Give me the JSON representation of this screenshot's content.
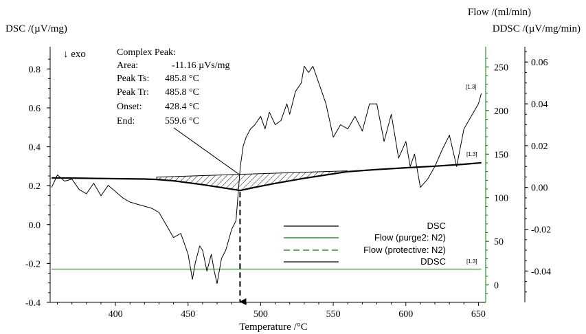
{
  "chart_data": {
    "type": "line",
    "labels": {
      "dsc_axis": "DSC /(µV/mg)",
      "flow_axis": "Flow /(ml/min)",
      "ddsc_axis": "DDSC /(µV/mg/min)",
      "x_axis": "Temperature /°C",
      "exo": "↓ exo"
    },
    "axes": {
      "x": {
        "range": [
          355,
          655
        ],
        "ticks": [
          "400",
          "450",
          "500",
          "550",
          "600",
          "650"
        ]
      },
      "dsc": {
        "range": [
          -0.4,
          0.9
        ],
        "ticks": [
          "-0.4",
          "-0.2",
          "0.0",
          "0.2",
          "0.4",
          "0.6",
          "0.8"
        ]
      },
      "flow": {
        "range": [
          -20,
          270
        ],
        "ticks": [
          "0",
          "50",
          "100",
          "150",
          "200",
          "250"
        ]
      },
      "ddsc": {
        "range": [
          -0.055,
          0.066
        ],
        "ticks": [
          "-0.04",
          "-0.02",
          "0.00",
          "0.02",
          "0.04",
          "0.06"
        ]
      }
    },
    "annotation": {
      "title": "Complex Peak:",
      "rows": [
        {
          "label": "Area:",
          "value": "-11.16 µVs/mg"
        },
        {
          "label": "Peak Ts:",
          "value": "485.8 °C"
        },
        {
          "label": "Peak Tr:",
          "value": "485.8 °C"
        },
        {
          "label": "Onset:",
          "value": "428.4 °C"
        },
        {
          "label": "End:",
          "value": "559.6 °C"
        }
      ],
      "peak_temperature": 485.8,
      "onset": 428.4,
      "end": 559.6
    },
    "segment_marker": "[1.3]",
    "colors": {
      "dsc": "#000000",
      "flow": "#008000",
      "ddsc": "#000000",
      "hatch": "#000000"
    },
    "series": [
      {
        "name": "DSC",
        "axis": "dsc",
        "x": [
          356,
          380,
          400,
          420,
          428.4,
          440,
          460,
          475,
          485.8,
          495,
          510,
          530,
          559.6,
          580,
          600,
          620,
          640,
          652
        ],
        "y": [
          0.24,
          0.238,
          0.236,
          0.234,
          0.232,
          0.225,
          0.205,
          0.188,
          0.175,
          0.19,
          0.212,
          0.238,
          0.272,
          0.283,
          0.292,
          0.3,
          0.31,
          0.318
        ]
      },
      {
        "name": "Flow (purge2: N2)",
        "axis": "flow",
        "x": [
          356,
          652
        ],
        "y": [
          18,
          18
        ]
      },
      {
        "name": "Flow (protective: N2)",
        "axis": "flow",
        "x": [],
        "y": []
      },
      {
        "name": "DDSC",
        "axis": "ddsc",
        "x": [
          356,
          360,
          365,
          370,
          375,
          380,
          385,
          390,
          395,
          400,
          405,
          410,
          415,
          420,
          425,
          430,
          435,
          440,
          445,
          450,
          453,
          455,
          458,
          460,
          463,
          466,
          468,
          470,
          473,
          476,
          480,
          483,
          486,
          488,
          490,
          493,
          496,
          500,
          503,
          506,
          510,
          514,
          518,
          520,
          524,
          528,
          530,
          533,
          536,
          540,
          545,
          550,
          555,
          560,
          565,
          570,
          575,
          580,
          585,
          590,
          595,
          600,
          603,
          606,
          610,
          615,
          620,
          625,
          630,
          635,
          640,
          645,
          650,
          652
        ],
        "y": [
          0.0,
          0.006,
          0.003,
          0.004,
          -0.001,
          -0.003,
          0.002,
          -0.004,
          0.001,
          -0.002,
          -0.005,
          -0.007,
          -0.008,
          -0.009,
          -0.01,
          -0.012,
          -0.018,
          -0.024,
          -0.022,
          -0.032,
          -0.044,
          -0.036,
          -0.028,
          -0.03,
          -0.04,
          -0.032,
          -0.04,
          -0.046,
          -0.034,
          -0.03,
          -0.02,
          -0.016,
          0.01,
          0.02,
          0.024,
          0.028,
          0.03,
          0.034,
          0.028,
          0.036,
          0.03,
          0.032,
          0.04,
          0.035,
          0.046,
          0.05,
          0.058,
          0.055,
          0.058,
          0.05,
          0.04,
          0.024,
          0.03,
          0.028,
          0.034,
          0.027,
          0.04,
          0.04,
          0.022,
          0.035,
          0.014,
          0.022,
          0.01,
          0.016,
          0.0,
          0.004,
          0.01,
          0.018,
          0.025,
          0.01,
          0.028,
          0.034,
          0.04,
          0.045
        ]
      }
    ]
  }
}
